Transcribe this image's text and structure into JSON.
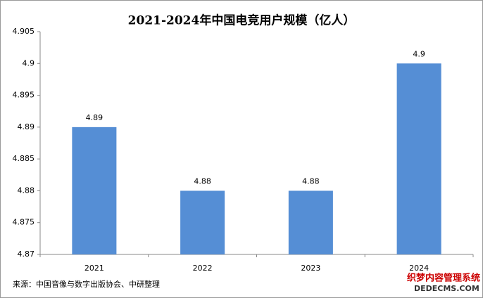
{
  "chart_data": {
    "type": "bar",
    "title": "2021-2024年中国电竞用户规模（亿人）",
    "categories": [
      "2021",
      "2022",
      "2023",
      "2024"
    ],
    "values": [
      4.89,
      4.88,
      4.88,
      4.9
    ],
    "color": "#558ed5",
    "ylim": [
      4.87,
      4.905
    ],
    "yticks": [
      4.87,
      4.875,
      4.88,
      4.885,
      4.89,
      4.895,
      4.9,
      4.905
    ],
    "grid": false,
    "source": "来源：中国音像与数字出版协会、中研整理"
  },
  "watermark": {
    "line1": "织梦内容管理系统",
    "line2": "DEDECMS.COM"
  }
}
